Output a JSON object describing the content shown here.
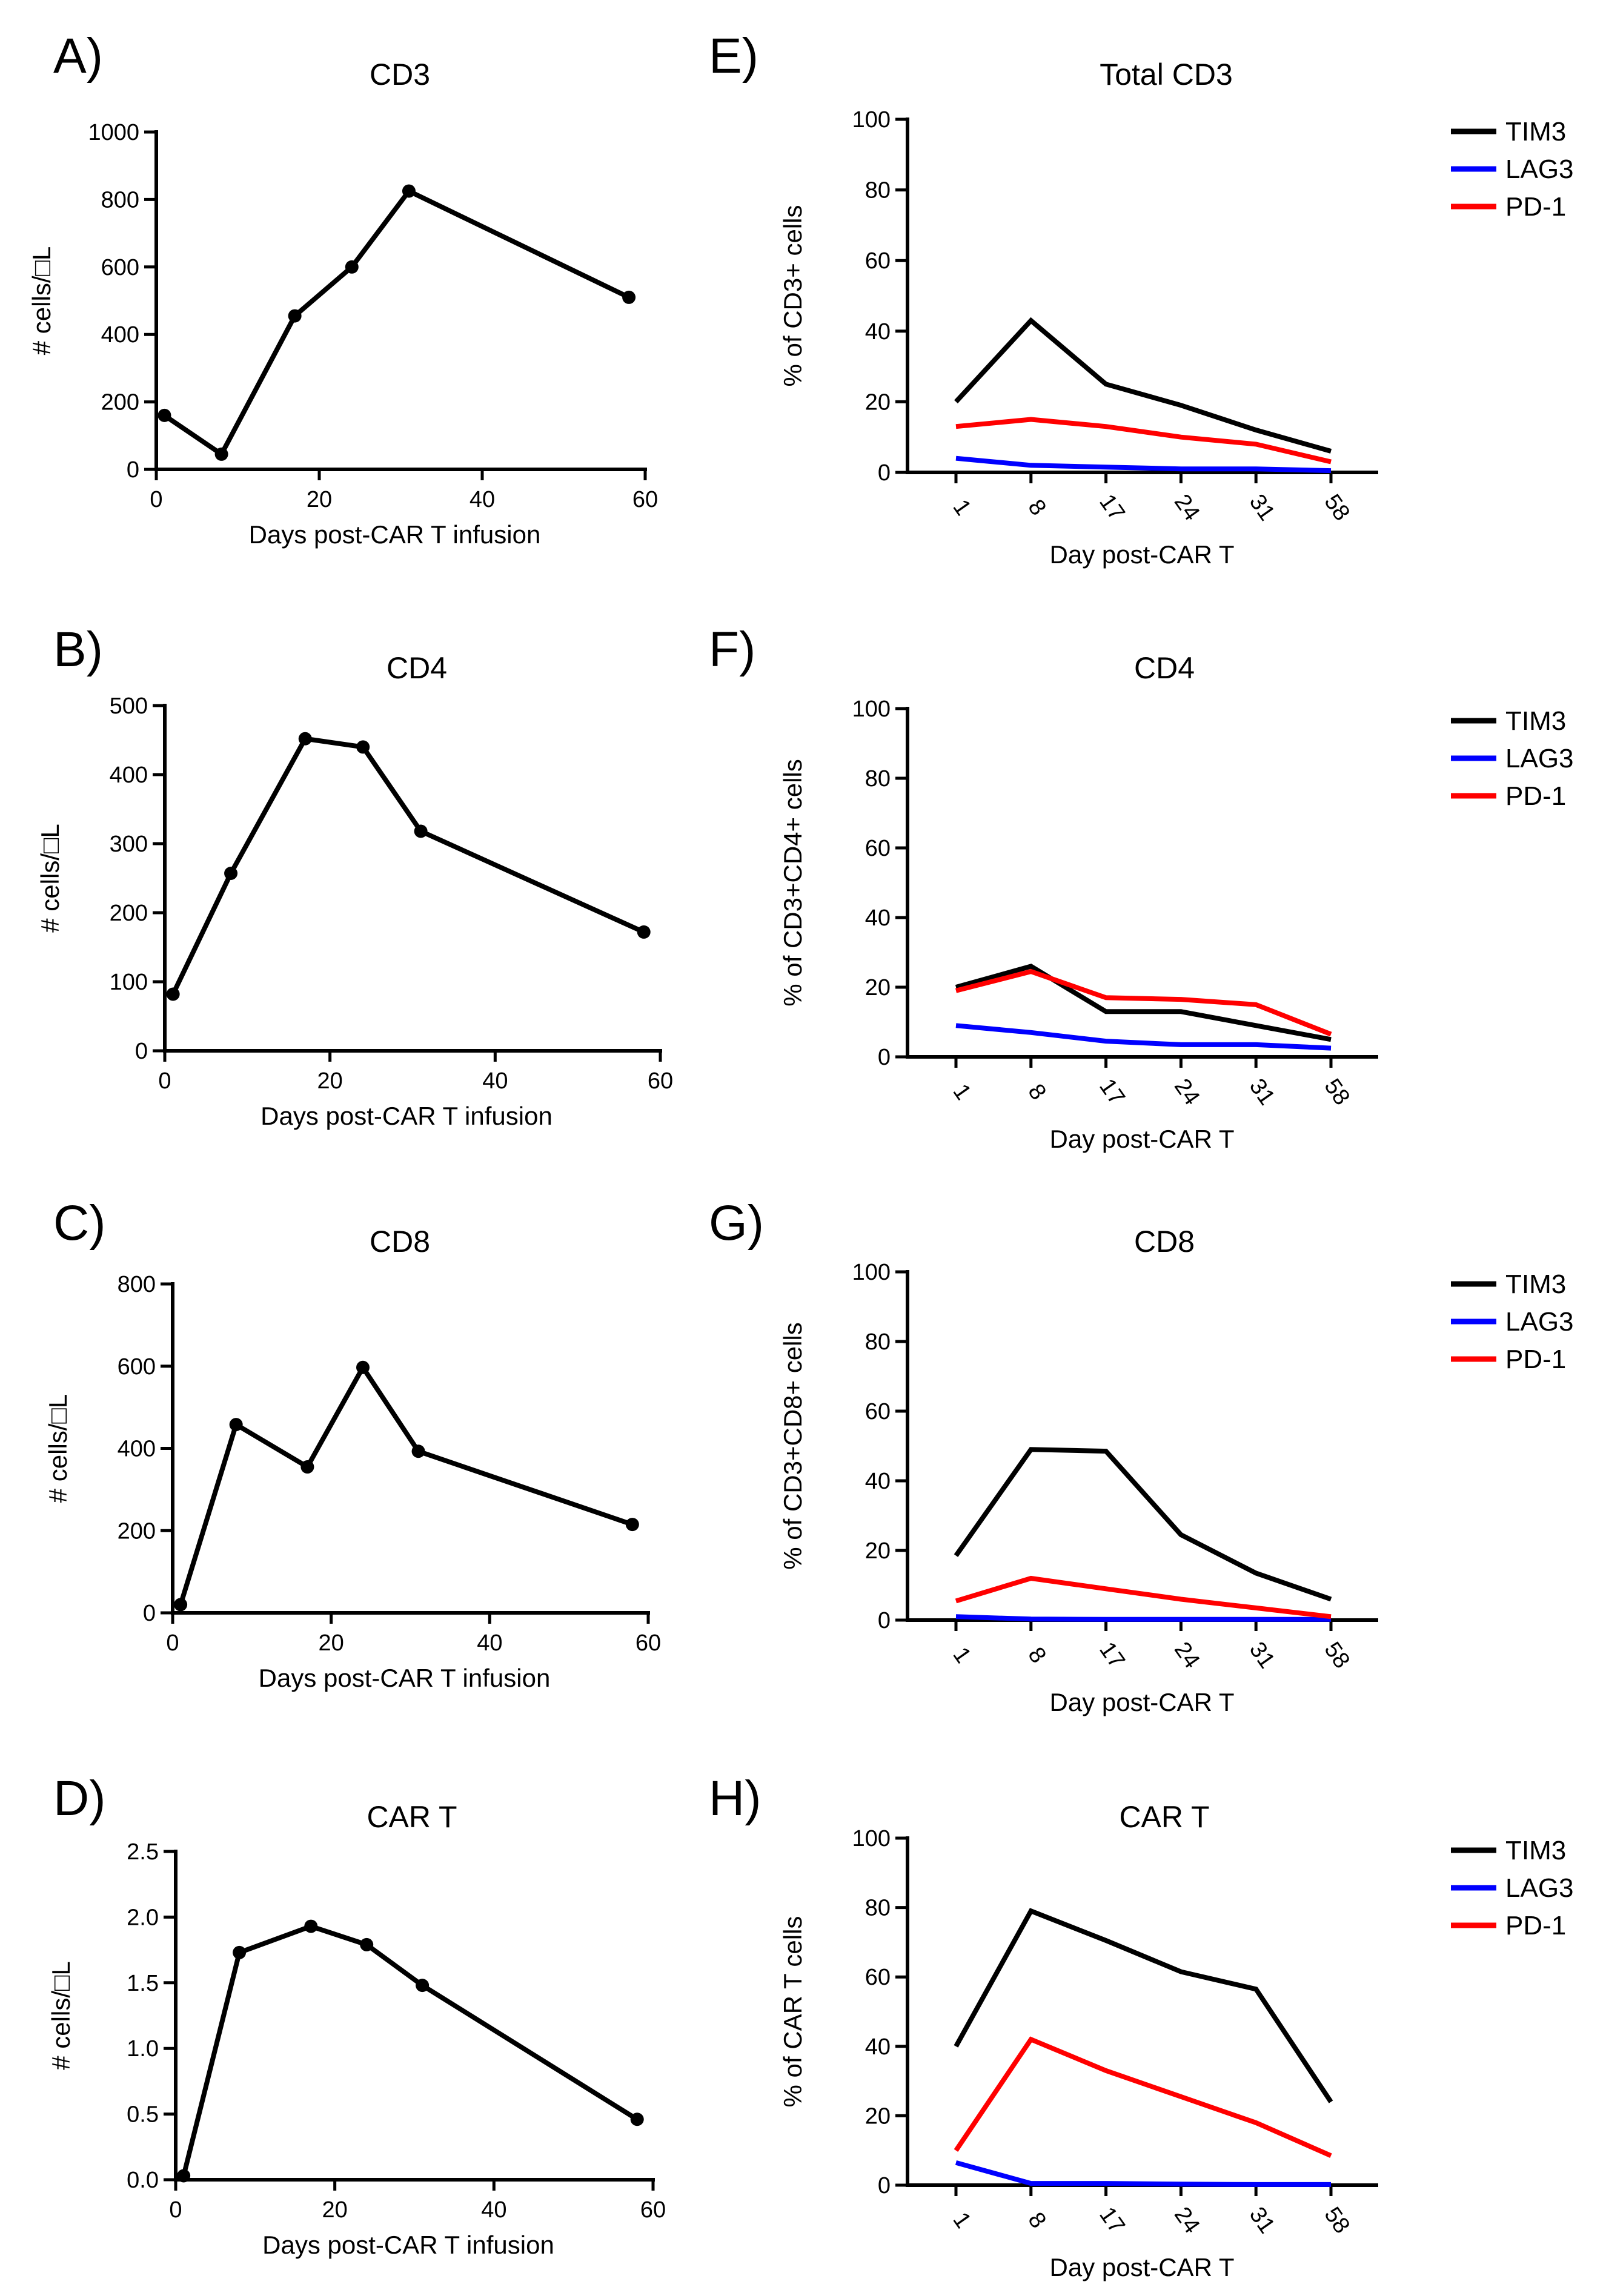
{
  "colors": {
    "tim3": "#000000",
    "lag3": "#0000ff",
    "pd1": "#ff0000",
    "axis": "#000000"
  },
  "chart_data": [
    {
      "id": "A",
      "panel": "A)",
      "type": "line",
      "title": "CD3",
      "xlabel": "Days post-CAR T infusion",
      "ylabel": "# cells/□L",
      "x": [
        1,
        8,
        17,
        24,
        31,
        58
      ],
      "y": [
        160,
        45,
        455,
        600,
        825,
        510
      ],
      "xlim": [
        0,
        60
      ],
      "ylim": [
        0,
        1000
      ],
      "xticks": [
        "0",
        "20",
        "40",
        "60"
      ],
      "yticks": [
        "0",
        "200",
        "400",
        "600",
        "800",
        "1000"
      ]
    },
    {
      "id": "B",
      "panel": "B)",
      "type": "line",
      "title": "CD4",
      "xlabel": "Days post-CAR T infusion",
      "ylabel": "# cells/□L",
      "x": [
        1,
        8,
        17,
        24,
        31,
        58
      ],
      "y": [
        82,
        257,
        452,
        440,
        318,
        172
      ],
      "xlim": [
        0,
        60
      ],
      "ylim": [
        0,
        500
      ],
      "xticks": [
        "0",
        "20",
        "40",
        "60"
      ],
      "yticks": [
        "0",
        "100",
        "200",
        "300",
        "400",
        "500"
      ]
    },
    {
      "id": "C",
      "panel": "C)",
      "type": "line",
      "title": "CD8",
      "xlabel": "Days post-CAR T infusion",
      "ylabel": "# cells/□L",
      "x": [
        1,
        8,
        17,
        24,
        31,
        58
      ],
      "y": [
        20,
        458,
        355,
        597,
        393,
        215
      ],
      "xlim": [
        0,
        60
      ],
      "ylim": [
        0,
        800
      ],
      "xticks": [
        "0",
        "20",
        "40",
        "60"
      ],
      "yticks": [
        "0",
        "200",
        "400",
        "600",
        "800"
      ]
    },
    {
      "id": "D",
      "panel": "D)",
      "type": "line",
      "title": "CAR T",
      "xlabel": "Days post-CAR T infusion",
      "ylabel": "# cells/□L",
      "x": [
        1,
        8,
        17,
        24,
        31,
        58
      ],
      "y": [
        0.03,
        1.73,
        1.93,
        1.79,
        1.48,
        0.46
      ],
      "xlim": [
        0,
        60
      ],
      "ylim": [
        0,
        2.5
      ],
      "xticks": [
        "0",
        "20",
        "40",
        "60"
      ],
      "yticks": [
        "0.0",
        "0.5",
        "1.0",
        "1.5",
        "2.0",
        "2.5"
      ]
    },
    {
      "id": "E",
      "panel": "E)",
      "type": "line",
      "title": "Total CD3",
      "xlabel": "Day post-CAR T",
      "ylabel": "% of CD3+ cells",
      "categories": [
        "1",
        "8",
        "17",
        "24",
        "31",
        "58"
      ],
      "ylim": [
        0,
        100
      ],
      "yticks": [
        "0",
        "20",
        "40",
        "60",
        "80",
        "100"
      ],
      "series": [
        {
          "name": "TIM3",
          "key": "tim3",
          "values": [
            20,
            43,
            25,
            19,
            12,
            6
          ]
        },
        {
          "name": "LAG3",
          "key": "lag3",
          "values": [
            4,
            2,
            1.5,
            1,
            1,
            0.5
          ]
        },
        {
          "name": "PD-1",
          "key": "pd1",
          "values": [
            13,
            15,
            13,
            10,
            8,
            3
          ]
        }
      ]
    },
    {
      "id": "F",
      "panel": "F)",
      "type": "line",
      "title": "CD4",
      "xlabel": "Day post-CAR T",
      "ylabel": "% of CD3+CD4+ cells",
      "categories": [
        "1",
        "8",
        "17",
        "24",
        "31",
        "58"
      ],
      "ylim": [
        0,
        100
      ],
      "yticks": [
        "0",
        "20",
        "40",
        "60",
        "80",
        "100"
      ],
      "series": [
        {
          "name": "TIM3",
          "key": "tim3",
          "values": [
            20,
            26,
            13,
            13,
            9,
            5
          ]
        },
        {
          "name": "LAG3",
          "key": "lag3",
          "values": [
            9,
            7,
            4.5,
            3.5,
            3.5,
            2.5
          ]
        },
        {
          "name": "PD-1",
          "key": "pd1",
          "values": [
            19,
            24.5,
            17,
            16.5,
            15,
            6.5
          ]
        }
      ]
    },
    {
      "id": "G",
      "panel": "G)",
      "type": "line",
      "title": "CD8",
      "xlabel": "Day post-CAR T",
      "ylabel": "% of CD3+CD8+ cells",
      "categories": [
        "1",
        "8",
        "17",
        "24",
        "31",
        "58"
      ],
      "ylim": [
        0,
        100
      ],
      "yticks": [
        "0",
        "20",
        "40",
        "60",
        "80",
        "100"
      ],
      "series": [
        {
          "name": "TIM3",
          "key": "tim3",
          "values": [
            18.5,
            49,
            48.5,
            24.5,
            13.5,
            6
          ]
        },
        {
          "name": "LAG3",
          "key": "lag3",
          "values": [
            1,
            0.3,
            0.2,
            0.2,
            0.2,
            0.2
          ]
        },
        {
          "name": "PD-1",
          "key": "pd1",
          "values": [
            5.5,
            12,
            9,
            6,
            3.5,
            1
          ]
        }
      ]
    },
    {
      "id": "H",
      "panel": "H)",
      "type": "line",
      "title": "CAR T",
      "xlabel": "Day post-CAR T",
      "ylabel": "% of CAR T cells",
      "categories": [
        "1",
        "8",
        "17",
        "24",
        "31",
        "58"
      ],
      "ylim": [
        0,
        100
      ],
      "yticks": [
        "0",
        "20",
        "40",
        "60",
        "80",
        "100"
      ],
      "series": [
        {
          "name": "TIM3",
          "key": "tim3",
          "values": [
            40,
            79,
            70.5,
            61.5,
            56.5,
            24
          ]
        },
        {
          "name": "LAG3",
          "key": "lag3",
          "values": [
            6.5,
            0.5,
            0.5,
            0.3,
            0.2,
            0.2
          ]
        },
        {
          "name": "PD-1",
          "key": "pd1",
          "values": [
            10,
            42,
            33,
            25.5,
            18,
            8.5
          ]
        }
      ]
    }
  ]
}
